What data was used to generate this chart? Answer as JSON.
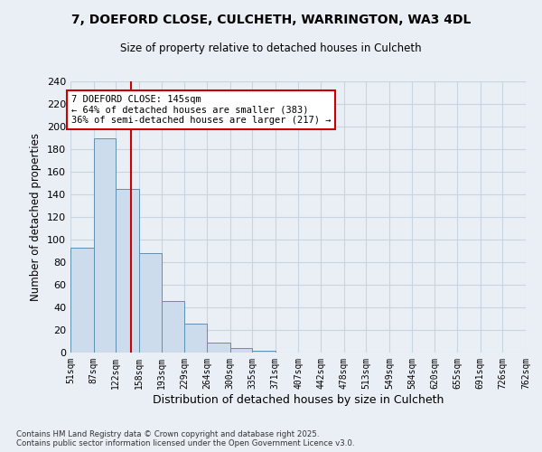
{
  "title_line1": "7, DOEFORD CLOSE, CULCHETH, WARRINGTON, WA3 4DL",
  "title_line2": "Size of property relative to detached houses in Culcheth",
  "xlabel": "Distribution of detached houses by size in Culcheth",
  "ylabel": "Number of detached properties",
  "bin_edges": [
    51,
    87,
    122,
    158,
    193,
    229,
    264,
    300,
    335,
    371,
    407,
    442,
    478,
    513,
    549,
    584,
    620,
    655,
    691,
    726,
    762
  ],
  "bar_heights": [
    93,
    190,
    145,
    88,
    46,
    26,
    9,
    4,
    2,
    0,
    0,
    0,
    0,
    0,
    0,
    0,
    0,
    0,
    0,
    0
  ],
  "bar_color": "#ccdcec",
  "bar_edge_color": "#6090b0",
  "grid_color": "#c8d4e0",
  "bg_color": "#eaeff5",
  "red_line_x": 145,
  "annotation_text": "7 DOEFORD CLOSE: 145sqm\n← 64% of detached houses are smaller (383)\n36% of semi-detached houses are larger (217) →",
  "annotation_box_color": "#ffffff",
  "annotation_box_edge": "#cc0000",
  "red_line_color": "#cc0000",
  "ylim": [
    0,
    240
  ],
  "yticks": [
    0,
    20,
    40,
    60,
    80,
    100,
    120,
    140,
    160,
    180,
    200,
    220,
    240
  ],
  "footer_line1": "Contains HM Land Registry data © Crown copyright and database right 2025.",
  "footer_line2": "Contains public sector information licensed under the Open Government Licence v3.0."
}
